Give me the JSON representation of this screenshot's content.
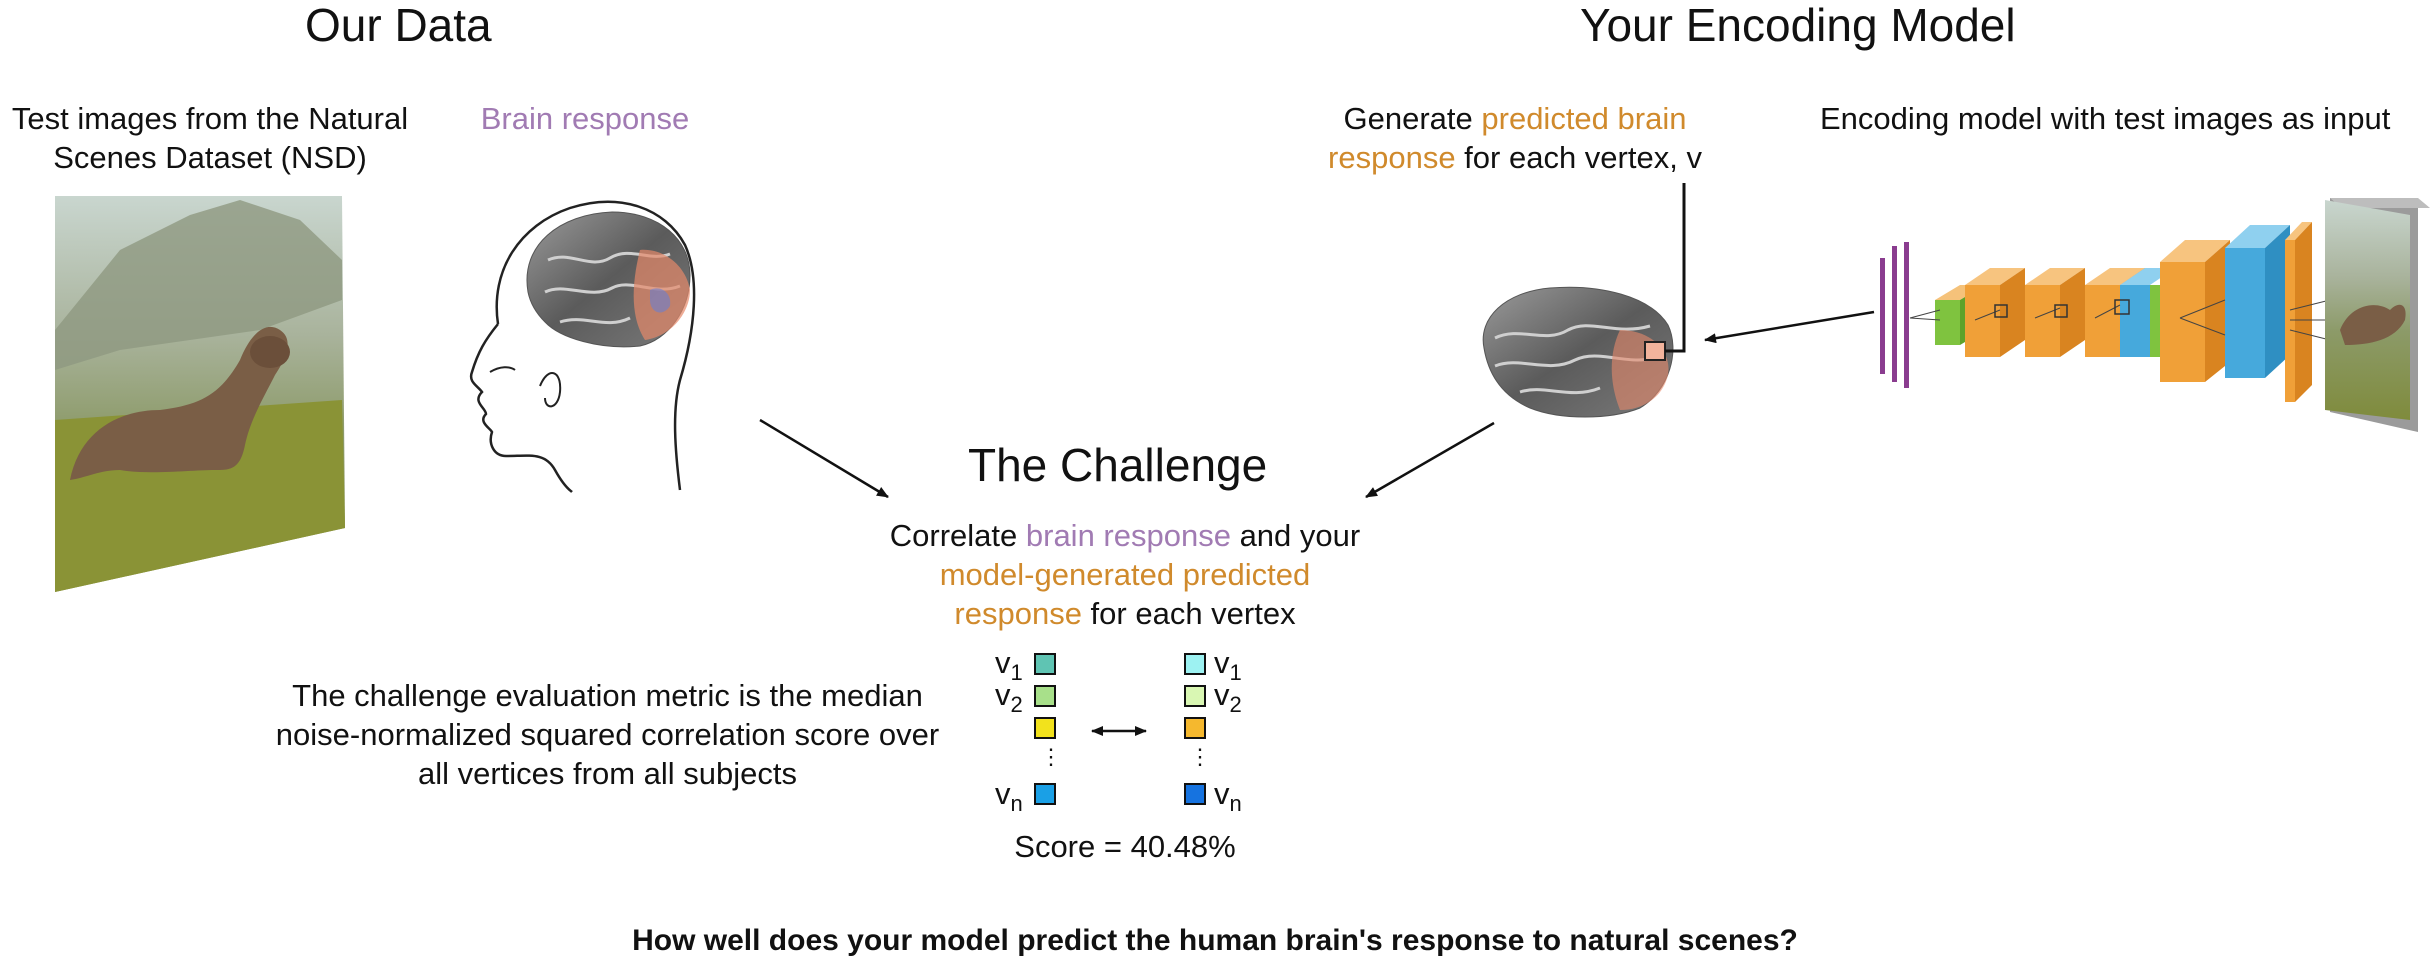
{
  "headings": {
    "our_data": "Our Data",
    "your_model": "Your Encoding Model",
    "challenge": "The Challenge"
  },
  "labels": {
    "test_images_line1": "Test images from the Natural",
    "test_images_line2": "Scenes Dataset (NSD)",
    "brain_response": "Brain response",
    "generate_l1_a": "Generate ",
    "generate_l1_b": "predicted brain",
    "generate_l2_a": "response",
    "generate_l2_b": " for each vertex, v",
    "encoding_model": "Encoding model with test images as input",
    "correlate_l1_a": "Correlate ",
    "correlate_l1_b": "brain response",
    "correlate_l1_c": " and your",
    "correlate_l2": "model-generated predicted",
    "correlate_l3_a": "response",
    "correlate_l3_b": " for each vertex",
    "metric_l1": "The challenge evaluation metric is the median",
    "metric_l2": "noise-normalized squared correlation score over",
    "metric_l3": "all vertices from all subjects",
    "score": "Score = 40.48%",
    "question": "How well does your model predict the human brain's response to natural scenes?"
  },
  "vectors": {
    "v": "v",
    "sub1": "1",
    "sub2": "2",
    "subn": "n",
    "dots": "⋮",
    "left_colors": [
      "#5fc4b3",
      "#a8e08a",
      "#f2e21c",
      "#1aa0e6"
    ],
    "right_colors": [
      "#9df2f2",
      "#d9f7b3",
      "#f5b82e",
      "#1673e0"
    ]
  },
  "colors": {
    "brain_response": "#a17bb3",
    "predicted": "#d08a2c",
    "cnn_orange": "#f0a038",
    "cnn_green": "#7fc33f",
    "cnn_blue": "#46a9dc",
    "cnn_purple": "#8a3c8f"
  }
}
